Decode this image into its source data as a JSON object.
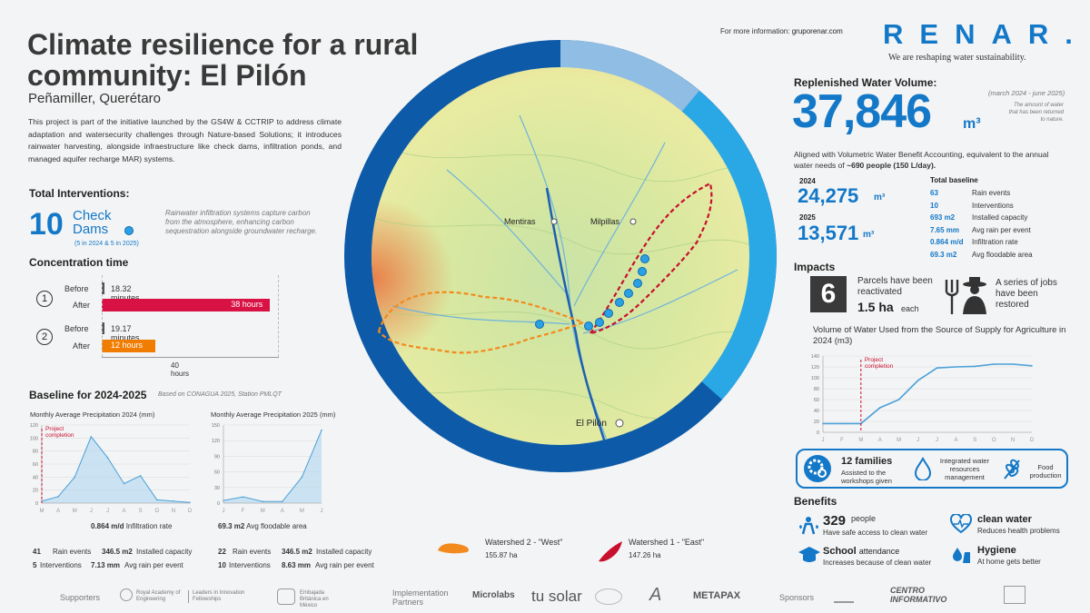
{
  "title": "Climate resilience for a rural community: El Pilón",
  "subtitle": "Peñamiller, Querétaro",
  "intro": "This project is part of the initiative launched by the GS4W & CCTRIP to address climate adaptation and watersecurity challenges through Nature-based Solutions; it introduces rainwater harvesting, alongside infraestructure like check dams, infiltration ponds, and managed aquifer recharge MAR) systems.",
  "header": {
    "more_info_label": "For more information:",
    "more_info_url": "gruporenar.com",
    "brand": "RENAR.",
    "brand_tagline": "We are reshaping water sustainability."
  },
  "interventions": {
    "heading": "Total Interventions:",
    "count": "10",
    "type_line1": "Check",
    "type_line2": "Dams",
    "split": "(5 in 2024 & 5 in 2025)",
    "note": "Rainwater infiltration systems capture carbon from the atmosphere, enhancing carbon sequestration alongside groundwater recharge."
  },
  "concentration": {
    "heading": "Concentration time",
    "before_label": "Before",
    "after_label": "After",
    "rows": [
      {
        "num": "1",
        "before": "18.32 minutes",
        "after": "38 hours",
        "after_hours": 38
      },
      {
        "num": "2",
        "before": "19.17 minutes",
        "after": "12 hours",
        "after_hours": 12
      }
    ],
    "scale_max_hours": 40,
    "scale_label": "40 hours"
  },
  "baseline": {
    "heading": "Baseline for 2024-2025",
    "source": "Based on CONAGUA 2025, Station PMLQT",
    "stats_2024": {
      "rate_value": "0.864 m/d",
      "rate_label": "Infiltration rate",
      "rain_events_value": "41",
      "rain_events_label": "Rain events",
      "capacity_value": "346.5 m2",
      "capacity_label": "Installed capacity",
      "interventions_value": "5",
      "interventions_label": "Interventions",
      "avg_rain_value": "7.13 mm",
      "avg_rain_label": "Avg rain per event"
    },
    "stats_2025": {
      "area_value": "69.3 m2",
      "area_label": "Avg floodable area",
      "rain_events_value": "22",
      "rain_events_label": "Rain events",
      "capacity_value": "346.5 m2",
      "capacity_label": "Installed capacity",
      "interventions_value": "10",
      "interventions_label": "Interventions",
      "avg_rain_value": "8.63 mm",
      "avg_rain_label": "Avg rain per event"
    }
  },
  "map": {
    "places": [
      "Mentiras",
      "Milpillas",
      "El Pilón"
    ],
    "legend": [
      {
        "name": "Watershed 2 - \"West\"",
        "area": "155.87 ha",
        "color": "#f28a1e"
      },
      {
        "name": "Watershed 1 - \"East\"",
        "area": "147.26 ha",
        "color": "#c8102e"
      }
    ]
  },
  "water_volume": {
    "heading": "Replenished Water Volume:",
    "value": "37,846",
    "unit": "m³",
    "period": "(march 2024 - june 2025)",
    "note": "The amount of water that has been returned to nature.",
    "description_pre": "Aligned with Volumetric Water Benefit Accounting, equivalent to the annual water needs of",
    "description_bold": "~690 people (150 L/day).",
    "year1_label": "2024",
    "year1_value": "24,275",
    "year2_label": "2025",
    "year2_value": "13,571",
    "year_unit": "m³",
    "total_heading": "Total baseline",
    "totals": [
      {
        "value": "63",
        "label": "Rain events"
      },
      {
        "value": "10",
        "label": "Interventions"
      },
      {
        "value": "693 m2",
        "label": "Installed capacity"
      },
      {
        "value": "7.65 mm",
        "label": "Avg rain per event"
      },
      {
        "value": "0.864 m/d",
        "label": "Infiltration rate"
      },
      {
        "value": "69.3 m2",
        "label": "Avg floodable area"
      }
    ]
  },
  "impacts": {
    "heading": "Impacts",
    "parcels_num": "6",
    "parcels_text": "Parcels have been reactivated",
    "parcels_area": "1.5 ha",
    "parcels_each": "each",
    "jobs_text": "A series of jobs have been restored",
    "families_value": "12 families",
    "families_text": "Assisted to the workshops given",
    "integrated_text": "Integrated water resources management",
    "food_text": "Food production"
  },
  "benefits": {
    "heading": "Benefits",
    "people_value": "329",
    "people_unit": "people",
    "people_text": "Have safe access to clean water",
    "clean_title": "clean water",
    "clean_text": "Reduces health problems",
    "school_title": "School",
    "school_title2": "attendance",
    "school_text": "Increases because of clean water",
    "hygiene_title": "Hygiene",
    "hygiene_text": "At home gets better"
  },
  "footer": {
    "supporters": "Supporters",
    "implementation": "Implementation Partners",
    "sponsors": "Sponsors",
    "royal": "Royal Academy of Engineering",
    "leaders": "Leaders in Innovation Fellowships",
    "embassy": "Embajada Británica en México",
    "microlabs": "Microlabs",
    "tusolar": "tu solar",
    "metapax": "METAPAX",
    "centro": "CENTRO INFORMATIVO"
  },
  "chart_data": [
    {
      "type": "area",
      "title": "Monthly Average Precipitation 2024 (mm)",
      "categories": [
        "M",
        "A",
        "M",
        "J",
        "J",
        "A",
        "S",
        "O",
        "N",
        "D"
      ],
      "values": [
        3,
        10,
        40,
        102,
        70,
        30,
        42,
        5,
        3,
        1
      ],
      "ylim": [
        0,
        120
      ],
      "yticks": [
        0,
        20,
        40,
        60,
        80,
        100,
        120
      ],
      "annotation": "Project completion",
      "annotation_index": 0.0
    },
    {
      "type": "area",
      "title": "Monthly Average Precipitation 2025 (mm)",
      "categories": [
        "J",
        "F",
        "M",
        "A",
        "M",
        "J"
      ],
      "values": [
        5,
        12,
        3,
        3,
        50,
        140
      ],
      "ylim": [
        0,
        150
      ],
      "yticks": [
        0,
        30,
        60,
        90,
        120,
        150
      ]
    },
    {
      "type": "line",
      "title": "Volume of Water Used from the Source of Supply for Agriculture in 2024 (m3)",
      "categories": [
        "J",
        "F",
        "M",
        "A",
        "M",
        "J",
        "J",
        "A",
        "S",
        "O",
        "N",
        "D"
      ],
      "values": [
        16,
        16,
        16,
        45,
        60,
        95,
        118,
        120,
        121,
        125,
        125,
        122
      ],
      "ylim": [
        0,
        140
      ],
      "yticks": [
        0,
        20,
        40,
        60,
        80,
        100,
        120,
        140
      ],
      "annotation": "Project completion",
      "annotation_index": 2
    }
  ]
}
